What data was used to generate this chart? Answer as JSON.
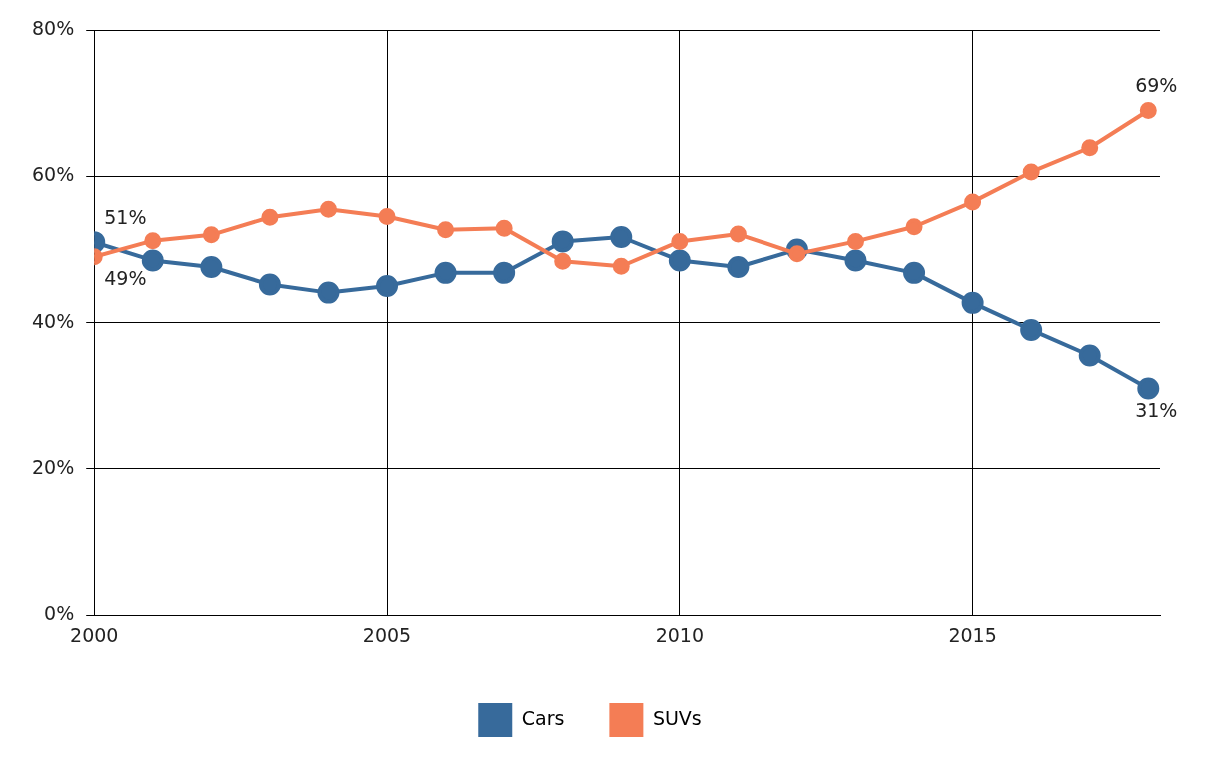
{
  "chart_data": {
    "type": "line",
    "x": [
      2000,
      2001,
      2002,
      2003,
      2004,
      2005,
      2006,
      2007,
      2008,
      2009,
      2010,
      2011,
      2012,
      2013,
      2014,
      2015,
      2016,
      2017,
      2018
    ],
    "series": [
      {
        "name": "Cars",
        "color": "#376a9b",
        "values": [
          51,
          48.5,
          47.6,
          45.2,
          44.1,
          45.0,
          46.8,
          46.8,
          51.1,
          51.7,
          48.5,
          47.6,
          50.0,
          48.5,
          46.8,
          42.7,
          39.0,
          35.5,
          31
        ],
        "value_labels": [
          "51%",
          null,
          null,
          null,
          null,
          null,
          null,
          null,
          null,
          null,
          null,
          null,
          null,
          null,
          null,
          null,
          null,
          null,
          "31%"
        ]
      },
      {
        "name": "SUVs",
        "color": "#f47d55",
        "values": [
          49,
          51.2,
          52.0,
          54.4,
          55.5,
          54.5,
          52.7,
          52.9,
          48.4,
          47.7,
          51.1,
          52.1,
          49.4,
          51.1,
          53.1,
          56.5,
          60.6,
          63.9,
          69
        ],
        "value_labels": [
          "49%",
          null,
          null,
          null,
          null,
          null,
          null,
          null,
          null,
          null,
          null,
          null,
          null,
          null,
          null,
          null,
          null,
          null,
          "69%"
        ]
      }
    ],
    "xlim": [
      2000,
      2018.2
    ],
    "xticks": [
      2000,
      2005,
      2010,
      2015
    ],
    "ylim": [
      0,
      80
    ],
    "yticks": [
      {
        "value": 0,
        "label": "0%"
      },
      {
        "value": 20,
        "label": "20%"
      },
      {
        "value": 40,
        "label": "40%"
      },
      {
        "value": 60,
        "label": "60%"
      },
      {
        "value": 80,
        "label": "80%"
      }
    ],
    "grid": true,
    "legend": "bottom",
    "marker": "circle",
    "line_style": "solid"
  }
}
